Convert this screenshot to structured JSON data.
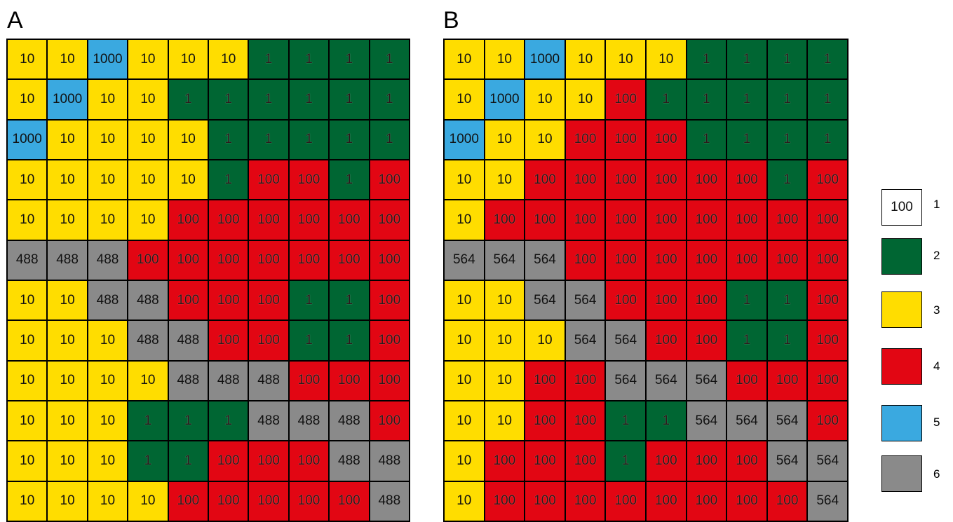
{
  "panels": [
    {
      "label": "A",
      "rows": [
        [
          [
            "10",
            3
          ],
          [
            "10",
            3
          ],
          [
            "1000",
            5
          ],
          [
            "10",
            3
          ],
          [
            "10",
            3
          ],
          [
            "10",
            3
          ],
          [
            "1",
            2
          ],
          [
            "1",
            2
          ],
          [
            "1",
            2
          ],
          [
            "1",
            2
          ]
        ],
        [
          [
            "10",
            3
          ],
          [
            "1000",
            5
          ],
          [
            "10",
            3
          ],
          [
            "10",
            3
          ],
          [
            "1",
            2
          ],
          [
            "1",
            2
          ],
          [
            "1",
            2
          ],
          [
            "1",
            2
          ],
          [
            "1",
            2
          ],
          [
            "1",
            2
          ]
        ],
        [
          [
            "1000",
            5
          ],
          [
            "10",
            3
          ],
          [
            "10",
            3
          ],
          [
            "10",
            3
          ],
          [
            "10",
            3
          ],
          [
            "1",
            2
          ],
          [
            "1",
            2
          ],
          [
            "1",
            2
          ],
          [
            "1",
            2
          ],
          [
            "1",
            2
          ]
        ],
        [
          [
            "10",
            3
          ],
          [
            "10",
            3
          ],
          [
            "10",
            3
          ],
          [
            "10",
            3
          ],
          [
            "10",
            3
          ],
          [
            "1",
            2
          ],
          [
            "100",
            4
          ],
          [
            "100",
            4
          ],
          [
            "1",
            2
          ],
          [
            "100",
            4
          ]
        ],
        [
          [
            "10",
            3
          ],
          [
            "10",
            3
          ],
          [
            "10",
            3
          ],
          [
            "10",
            3
          ],
          [
            "100",
            4
          ],
          [
            "100",
            4
          ],
          [
            "100",
            4
          ],
          [
            "100",
            4
          ],
          [
            "100",
            4
          ],
          [
            "100",
            4
          ]
        ],
        [
          [
            "488",
            6
          ],
          [
            "488",
            6
          ],
          [
            "488",
            6
          ],
          [
            "100",
            4
          ],
          [
            "100",
            4
          ],
          [
            "100",
            4
          ],
          [
            "100",
            4
          ],
          [
            "100",
            4
          ],
          [
            "100",
            4
          ],
          [
            "100",
            4
          ]
        ],
        [
          [
            "10",
            3
          ],
          [
            "10",
            3
          ],
          [
            "488",
            6
          ],
          [
            "488",
            6
          ],
          [
            "100",
            4
          ],
          [
            "100",
            4
          ],
          [
            "100",
            4
          ],
          [
            "1",
            2
          ],
          [
            "1",
            2
          ],
          [
            "100",
            4
          ]
        ],
        [
          [
            "10",
            3
          ],
          [
            "10",
            3
          ],
          [
            "10",
            3
          ],
          [
            "488",
            6
          ],
          [
            "488",
            6
          ],
          [
            "100",
            4
          ],
          [
            "100",
            4
          ],
          [
            "1",
            2
          ],
          [
            "1",
            2
          ],
          [
            "100",
            4
          ]
        ],
        [
          [
            "10",
            3
          ],
          [
            "10",
            3
          ],
          [
            "10",
            3
          ],
          [
            "10",
            3
          ],
          [
            "488",
            6
          ],
          [
            "488",
            6
          ],
          [
            "488",
            6
          ],
          [
            "100",
            4
          ],
          [
            "100",
            4
          ],
          [
            "100",
            4
          ]
        ],
        [
          [
            "10",
            3
          ],
          [
            "10",
            3
          ],
          [
            "10",
            3
          ],
          [
            "1",
            2
          ],
          [
            "1",
            2
          ],
          [
            "1",
            2
          ],
          [
            "488",
            6
          ],
          [
            "488",
            6
          ],
          [
            "488",
            6
          ],
          [
            "100",
            4
          ]
        ],
        [
          [
            "10",
            3
          ],
          [
            "10",
            3
          ],
          [
            "10",
            3
          ],
          [
            "1",
            2
          ],
          [
            "1",
            2
          ],
          [
            "100",
            4
          ],
          [
            "100",
            4
          ],
          [
            "100",
            4
          ],
          [
            "488",
            6
          ],
          [
            "488",
            6
          ]
        ],
        [
          [
            "10",
            3
          ],
          [
            "10",
            3
          ],
          [
            "10",
            3
          ],
          [
            "10",
            3
          ],
          [
            "100",
            4
          ],
          [
            "100",
            4
          ],
          [
            "100",
            4
          ],
          [
            "100",
            4
          ],
          [
            "100",
            4
          ],
          [
            "488",
            6
          ]
        ]
      ]
    },
    {
      "label": "B",
      "rows": [
        [
          [
            "10",
            3
          ],
          [
            "10",
            3
          ],
          [
            "1000",
            5
          ],
          [
            "10",
            3
          ],
          [
            "10",
            3
          ],
          [
            "10",
            3
          ],
          [
            "1",
            2
          ],
          [
            "1",
            2
          ],
          [
            "1",
            2
          ],
          [
            "1",
            2
          ]
        ],
        [
          [
            "10",
            3
          ],
          [
            "1000",
            5
          ],
          [
            "10",
            3
          ],
          [
            "10",
            3
          ],
          [
            "100",
            4
          ],
          [
            "1",
            2
          ],
          [
            "1",
            2
          ],
          [
            "1",
            2
          ],
          [
            "1",
            2
          ],
          [
            "1",
            2
          ]
        ],
        [
          [
            "1000",
            5
          ],
          [
            "10",
            3
          ],
          [
            "10",
            3
          ],
          [
            "100",
            4
          ],
          [
            "100",
            4
          ],
          [
            "100",
            4
          ],
          [
            "1",
            2
          ],
          [
            "1",
            2
          ],
          [
            "1",
            2
          ],
          [
            "1",
            2
          ]
        ],
        [
          [
            "10",
            3
          ],
          [
            "10",
            3
          ],
          [
            "100",
            4
          ],
          [
            "100",
            4
          ],
          [
            "100",
            4
          ],
          [
            "100",
            4
          ],
          [
            "100",
            4
          ],
          [
            "100",
            4
          ],
          [
            "1",
            2
          ],
          [
            "100",
            4
          ]
        ],
        [
          [
            "10",
            3
          ],
          [
            "100",
            4
          ],
          [
            "100",
            4
          ],
          [
            "100",
            4
          ],
          [
            "100",
            4
          ],
          [
            "100",
            4
          ],
          [
            "100",
            4
          ],
          [
            "100",
            4
          ],
          [
            "100",
            4
          ],
          [
            "100",
            4
          ]
        ],
        [
          [
            "564",
            6
          ],
          [
            "564",
            6
          ],
          [
            "564",
            6
          ],
          [
            "100",
            4
          ],
          [
            "100",
            4
          ],
          [
            "100",
            4
          ],
          [
            "100",
            4
          ],
          [
            "100",
            4
          ],
          [
            "100",
            4
          ],
          [
            "100",
            4
          ]
        ],
        [
          [
            "10",
            3
          ],
          [
            "10",
            3
          ],
          [
            "564",
            6
          ],
          [
            "564",
            6
          ],
          [
            "100",
            4
          ],
          [
            "100",
            4
          ],
          [
            "100",
            4
          ],
          [
            "1",
            2
          ],
          [
            "1",
            2
          ],
          [
            "100",
            4
          ]
        ],
        [
          [
            "10",
            3
          ],
          [
            "10",
            3
          ],
          [
            "10",
            3
          ],
          [
            "564",
            6
          ],
          [
            "564",
            6
          ],
          [
            "100",
            4
          ],
          [
            "100",
            4
          ],
          [
            "1",
            2
          ],
          [
            "1",
            2
          ],
          [
            "100",
            4
          ]
        ],
        [
          [
            "10",
            3
          ],
          [
            "10",
            3
          ],
          [
            "100",
            4
          ],
          [
            "100",
            4
          ],
          [
            "564",
            6
          ],
          [
            "564",
            6
          ],
          [
            "564",
            6
          ],
          [
            "100",
            4
          ],
          [
            "100",
            4
          ],
          [
            "100",
            4
          ]
        ],
        [
          [
            "10",
            3
          ],
          [
            "10",
            3
          ],
          [
            "100",
            4
          ],
          [
            "100",
            4
          ],
          [
            "1",
            2
          ],
          [
            "1",
            2
          ],
          [
            "564",
            6
          ],
          [
            "564",
            6
          ],
          [
            "564",
            6
          ],
          [
            "100",
            4
          ]
        ],
        [
          [
            "10",
            3
          ],
          [
            "100",
            4
          ],
          [
            "100",
            4
          ],
          [
            "100",
            4
          ],
          [
            "1",
            2
          ],
          [
            "100",
            4
          ],
          [
            "100",
            4
          ],
          [
            "100",
            4
          ],
          [
            "564",
            6
          ],
          [
            "564",
            6
          ]
        ],
        [
          [
            "10",
            3
          ],
          [
            "100",
            4
          ],
          [
            "100",
            4
          ],
          [
            "100",
            4
          ],
          [
            "100",
            4
          ],
          [
            "100",
            4
          ],
          [
            "100",
            4
          ],
          [
            "100",
            4
          ],
          [
            "100",
            4
          ],
          [
            "564",
            6
          ]
        ]
      ]
    }
  ],
  "legend": [
    {
      "number": "1",
      "swatch_text": "100",
      "color": "#ffffff"
    },
    {
      "number": "2",
      "swatch_text": "",
      "color": "#006633"
    },
    {
      "number": "3",
      "swatch_text": "",
      "color": "#ffdd00"
    },
    {
      "number": "4",
      "swatch_text": "",
      "color": "#e20613"
    },
    {
      "number": "5",
      "swatch_text": "",
      "color": "#3aa9e0"
    },
    {
      "number": "6",
      "swatch_text": "",
      "color": "#8a8a8a"
    }
  ]
}
